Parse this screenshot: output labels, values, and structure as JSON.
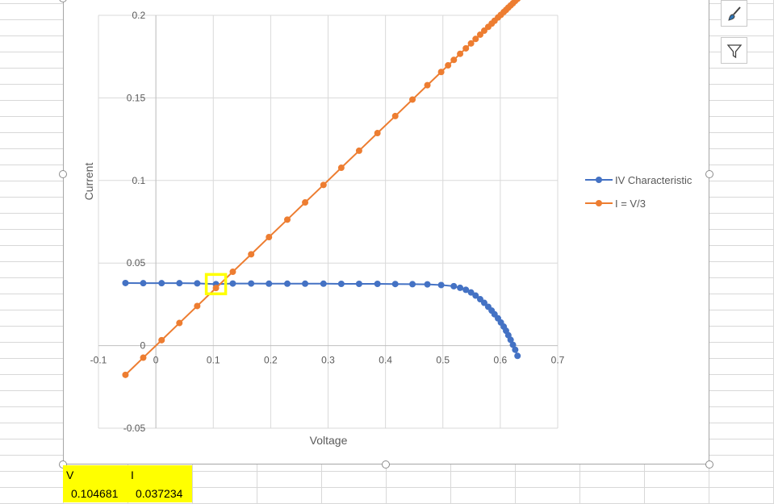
{
  "chart_data": {
    "type": "scatter",
    "xlabel": "Voltage",
    "ylabel": "Current",
    "xlim": [
      -0.1,
      0.7
    ],
    "ylim": [
      -0.05,
      0.2
    ],
    "x_ticks": [
      "-0.1",
      "0",
      "0.1",
      "0.2",
      "0.3",
      "0.4",
      "0.5",
      "0.6",
      "0.7"
    ],
    "y_ticks": [
      "-0.05",
      "0",
      "0.05",
      "0.1",
      "0.15",
      "0.2"
    ],
    "grid": true,
    "legend_position": "right",
    "series": [
      {
        "name": "IV Characteristic",
        "color": "#4472c4",
        "x": [
          -0.053,
          -0.022,
          0.01,
          0.041,
          0.072,
          0.104681,
          0.134,
          0.166,
          0.197,
          0.229,
          0.26,
          0.292,
          0.323,
          0.354,
          0.386,
          0.417,
          0.447,
          0.473,
          0.497,
          0.519,
          0.53,
          0.54,
          0.549,
          0.557,
          0.565,
          0.572,
          0.579,
          0.585,
          0.59,
          0.596,
          0.601,
          0.606,
          0.61,
          0.614,
          0.618,
          0.622,
          0.626,
          0.63
        ],
        "y": [
          0.0379,
          0.0378,
          0.0378,
          0.0378,
          0.0377,
          0.037234,
          0.0376,
          0.0376,
          0.0375,
          0.0375,
          0.0375,
          0.0375,
          0.0374,
          0.0374,
          0.0374,
          0.0373,
          0.0372,
          0.0371,
          0.0367,
          0.036,
          0.035,
          0.0338,
          0.0322,
          0.0303,
          0.0281,
          0.0259,
          0.0235,
          0.0212,
          0.019,
          0.0165,
          0.014,
          0.0115,
          0.009,
          0.0063,
          0.0035,
          0.0005,
          -0.0025,
          -0.0062
        ]
      },
      {
        "name": "I = V/3",
        "color": "#ed7d31",
        "x": [
          -0.053,
          -0.022,
          0.01,
          0.041,
          0.072,
          0.104681,
          0.134,
          0.166,
          0.197,
          0.229,
          0.26,
          0.292,
          0.323,
          0.354,
          0.386,
          0.417,
          0.447,
          0.473,
          0.497,
          0.509,
          0.519,
          0.53,
          0.54,
          0.549,
          0.557,
          0.565,
          0.572,
          0.579,
          0.585,
          0.59,
          0.596,
          0.601,
          0.606,
          0.61,
          0.614,
          0.618,
          0.622,
          0.626,
          0.63
        ],
        "y": [
          -0.0177,
          -0.0073,
          0.0033,
          0.0137,
          0.024,
          0.0349,
          0.0447,
          0.0553,
          0.0657,
          0.0763,
          0.0867,
          0.0973,
          0.1077,
          0.118,
          0.1287,
          0.139,
          0.149,
          0.1577,
          0.1657,
          0.1697,
          0.173,
          0.1767,
          0.18,
          0.183,
          0.1857,
          0.1883,
          0.1907,
          0.193,
          0.195,
          0.1967,
          0.1987,
          0.2003,
          0.202,
          0.2033,
          0.2047,
          0.206,
          0.2073,
          0.2087,
          0.21
        ]
      }
    ],
    "highlight_point": {
      "x": 0.104681,
      "y": 0.037234,
      "color": "#ffff00"
    }
  },
  "cells": {
    "v_header": "V",
    "i_header": "I",
    "v_value": "0.104681",
    "i_value": "0.037234",
    "highlight_color": "#ffff00"
  },
  "side_buttons": {
    "style_icon": "paintbrush-icon",
    "filter_icon": "filter-icon"
  }
}
